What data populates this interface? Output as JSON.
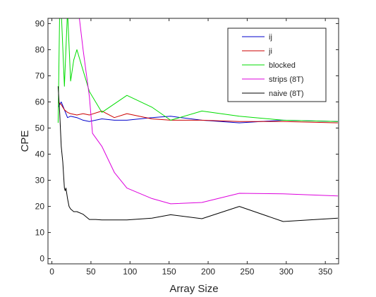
{
  "chart_data": {
    "type": "line",
    "title": "",
    "xlabel": "Array Size",
    "ylabel": "CPE",
    "xlim": [
      -5,
      367
    ],
    "ylim": [
      -2,
      92
    ],
    "xticks": [
      0,
      50,
      100,
      150,
      200,
      250,
      300,
      350
    ],
    "yticks": [
      0,
      10,
      20,
      30,
      40,
      50,
      60,
      70,
      80,
      90
    ],
    "grid": false,
    "legend_position": "top-right",
    "series": [
      {
        "name": "ij",
        "color": "#0000cc",
        "x": [
          8,
          12,
          16,
          20,
          24,
          32,
          40,
          48,
          64,
          80,
          96,
          128,
          152,
          192,
          240,
          296,
          366
        ],
        "y": [
          58,
          60,
          57,
          54,
          54.5,
          54,
          53,
          52.5,
          53.5,
          53,
          53,
          54,
          54.5,
          53,
          52,
          53,
          52.5
        ]
      },
      {
        "name": "ji",
        "color": "#cc0000",
        "x": [
          8,
          12,
          16,
          20,
          24,
          32,
          40,
          48,
          64,
          80,
          96,
          128,
          152,
          192,
          240,
          296,
          366
        ],
        "y": [
          60,
          59,
          57,
          56,
          55.5,
          55,
          55.5,
          55,
          56.5,
          54,
          55.5,
          53.5,
          53,
          53,
          52.5,
          52.5,
          52
        ]
      },
      {
        "name": "blocked",
        "color": "#00dd00",
        "x": [
          8,
          10,
          12,
          16,
          20,
          24,
          28,
          32,
          40,
          48,
          64,
          96,
          128,
          152,
          192,
          240,
          296,
          366
        ],
        "y": [
          52,
          95,
          95,
          66,
          95,
          68,
          76,
          80,
          72,
          64,
          56,
          62.5,
          58,
          53,
          56.5,
          54.5,
          53,
          52.5
        ]
      },
      {
        "name": "strips (8T)",
        "color": "#dd00dd",
        "x": [
          34,
          40,
          48,
          52,
          64,
          80,
          96,
          128,
          152,
          192,
          240,
          296,
          366
        ],
        "y": [
          95,
          80,
          62,
          48,
          43,
          33,
          27,
          23,
          21,
          21.5,
          25,
          24.8,
          24
        ]
      },
      {
        "name": "naive (8T)",
        "color": "#000000",
        "x": [
          8,
          10,
          12,
          14,
          16,
          17,
          18,
          19,
          20,
          22,
          24,
          28,
          32,
          40,
          48,
          56,
          64,
          80,
          96,
          128,
          152,
          192,
          240,
          296,
          366
        ],
        "y": [
          66,
          56,
          43,
          37,
          27,
          26,
          27,
          25,
          23,
          20,
          19,
          18,
          18,
          17,
          15,
          15,
          14.8,
          14.8,
          14.8,
          15.5,
          16.8,
          15.3,
          20,
          14.2,
          15.5
        ]
      }
    ]
  }
}
